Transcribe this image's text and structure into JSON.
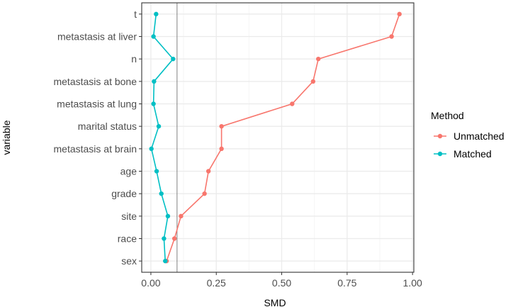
{
  "chart_data": {
    "type": "line",
    "title": "",
    "xlabel": "SMD",
    "ylabel": "variable",
    "xlim": [
      -0.035,
      1.005
    ],
    "x_ticks": [
      0.0,
      0.25,
      0.5,
      0.75,
      1.0
    ],
    "x_tick_labels": [
      "0.00",
      "0.25",
      "0.50",
      "0.75",
      "1.00"
    ],
    "threshold": 0.1,
    "categories": [
      "t",
      "metastasis at liver",
      "n",
      "metastasis at bone",
      "metastasis at lung",
      "marital status",
      "metastasis at brain",
      "age",
      "grade",
      "site",
      "race",
      "sex"
    ],
    "series": [
      {
        "name": "Unmatched",
        "color": "#F8766D",
        "values": [
          0.95,
          0.92,
          0.64,
          0.62,
          0.54,
          0.27,
          0.27,
          0.22,
          0.205,
          0.115,
          0.09,
          0.06
        ]
      },
      {
        "name": "Matched",
        "color": "#00BFC4",
        "values": [
          0.02,
          0.01,
          0.085,
          0.012,
          0.01,
          0.03,
          0.002,
          0.022,
          0.04,
          0.065,
          0.05,
          0.055
        ]
      }
    ],
    "legend": {
      "title": "Method",
      "placement": "right"
    },
    "grid": true,
    "colors": {
      "panel_border": "#333333",
      "grid_major": "#ebebeb",
      "grid_minor": "#f5f5f5",
      "threshold_line": "#808080",
      "text": "#4d4d4d",
      "axis_title": "#000000"
    }
  }
}
